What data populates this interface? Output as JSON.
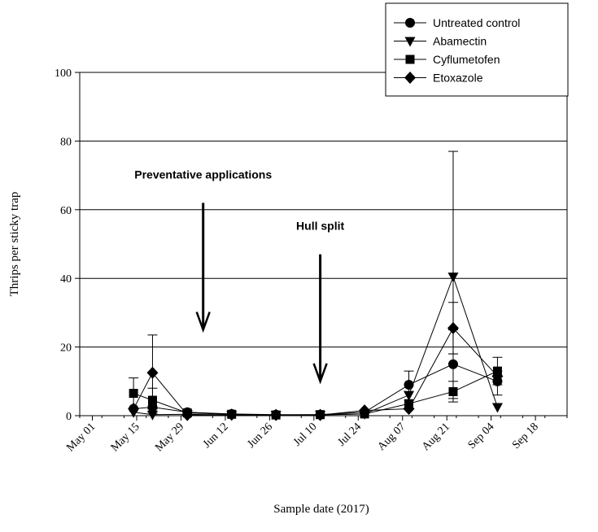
{
  "chart_data": {
    "type": "line",
    "title": "",
    "xlabel": "Sample date (2017)",
    "ylabel": "Thrips per sticky trap",
    "ylim": [
      0,
      100
    ],
    "yticks": [
      0,
      20,
      40,
      60,
      80,
      100
    ],
    "xticks": [
      "2017-05-01",
      "2017-05-15",
      "2017-05-29",
      "2017-06-12",
      "2017-06-26",
      "2017-07-10",
      "2017-07-24",
      "2017-08-07",
      "2017-08-21",
      "2017-09-04",
      "2017-09-18"
    ],
    "xtick_labels": [
      "May 01",
      "May 15",
      "May 29",
      "Jun 12",
      "Jun 26",
      "Jul 10",
      "Jul 24",
      "Aug 07",
      "Aug 21",
      "Sep 04",
      "Sep 18"
    ],
    "xlim": [
      "2017-04-27",
      "2017-09-28"
    ],
    "grid": "horizontal",
    "legend_position": "top-right",
    "series": [
      {
        "name": "Untreated control",
        "marker": "circle",
        "points": [
          {
            "x": "2017-05-14",
            "y": 2
          },
          {
            "x": "2017-05-20",
            "y": 2.5,
            "err": [
              0.5,
              2
            ]
          },
          {
            "x": "2017-05-31",
            "y": 1
          },
          {
            "x": "2017-06-14",
            "y": 0.5
          },
          {
            "x": "2017-06-28",
            "y": 0.3
          },
          {
            "x": "2017-07-12",
            "y": 0.3
          },
          {
            "x": "2017-07-26",
            "y": 1
          },
          {
            "x": "2017-08-09",
            "y": 9,
            "err": [
              4.5,
              13
            ]
          },
          {
            "x": "2017-08-23",
            "y": 15,
            "err": [
              5,
              25
            ]
          },
          {
            "x": "2017-09-06",
            "y": 10,
            "err": [
              6,
              13
            ]
          }
        ]
      },
      {
        "name": "Abamectin",
        "marker": "triangle-down",
        "points": [
          {
            "x": "2017-05-14",
            "y": 1
          },
          {
            "x": "2017-05-20",
            "y": 0.3
          },
          {
            "x": "2017-05-31",
            "y": 0.4
          },
          {
            "x": "2017-06-14",
            "y": 0.2
          },
          {
            "x": "2017-06-28",
            "y": 0.2
          },
          {
            "x": "2017-07-12",
            "y": 0.2
          },
          {
            "x": "2017-07-26",
            "y": 0.5
          },
          {
            "x": "2017-08-09",
            "y": 6
          },
          {
            "x": "2017-08-23",
            "y": 40.5,
            "err": [
              18,
              77
            ]
          },
          {
            "x": "2017-09-06",
            "y": 2.5
          }
        ]
      },
      {
        "name": "Cyflumetofen",
        "marker": "square",
        "points": [
          {
            "x": "2017-05-14",
            "y": 6.5,
            "err": [
              2,
              11
            ]
          },
          {
            "x": "2017-05-20",
            "y": 4.5,
            "err": [
              1,
              8
            ]
          },
          {
            "x": "2017-05-31",
            "y": 0.8
          },
          {
            "x": "2017-06-14",
            "y": 0.4
          },
          {
            "x": "2017-06-28",
            "y": 0.2
          },
          {
            "x": "2017-07-12",
            "y": 0.3
          },
          {
            "x": "2017-07-26",
            "y": 0.5
          },
          {
            "x": "2017-08-09",
            "y": 3.5
          },
          {
            "x": "2017-08-23",
            "y": 7,
            "err": [
              4,
              10
            ]
          },
          {
            "x": "2017-09-06",
            "y": 13,
            "err": [
              9,
              17
            ]
          }
        ]
      },
      {
        "name": "Etoxazole",
        "marker": "diamond",
        "points": [
          {
            "x": "2017-05-14",
            "y": 2
          },
          {
            "x": "2017-05-20",
            "y": 12.5,
            "err": [
              2,
              23.5
            ]
          },
          {
            "x": "2017-05-31",
            "y": 0.2
          },
          {
            "x": "2017-06-14",
            "y": 0.3
          },
          {
            "x": "2017-06-28",
            "y": 0.2
          },
          {
            "x": "2017-07-12",
            "y": 0.2
          },
          {
            "x": "2017-07-26",
            "y": 1.5
          },
          {
            "x": "2017-08-09",
            "y": 2
          },
          {
            "x": "2017-08-23",
            "y": 25.5,
            "err": [
              18,
              33
            ]
          },
          {
            "x": "2017-09-06",
            "y": 11.5
          }
        ]
      }
    ],
    "annotations": [
      {
        "text": "Preventative applications",
        "arrow_x": "2017-06-05",
        "arrow_from": 62,
        "arrow_to": 25
      },
      {
        "text": "Hull split",
        "arrow_x": "2017-07-12",
        "arrow_from": 47,
        "arrow_to": 10
      }
    ]
  }
}
